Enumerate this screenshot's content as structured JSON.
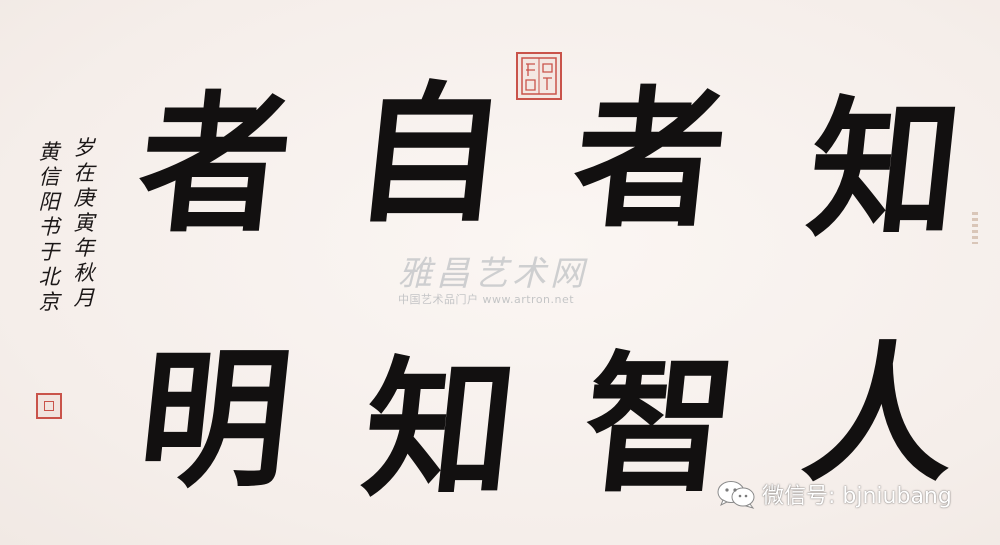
{
  "calligraphy": {
    "top_row": [
      "知",
      "者",
      "自",
      "者"
    ],
    "bottom_row": [
      "人",
      "智",
      "知",
      "明"
    ]
  },
  "inscription": {
    "col1": "岁在庚寅年秋月",
    "col2": "黄信阳书于北京"
  },
  "watermark": {
    "chinese": "雅昌艺术网",
    "sub": "中国艺术品门户 www.artron.net"
  },
  "wechat": {
    "label": "微信号: bjniubang"
  },
  "colors": {
    "paper": "#f7f1ee",
    "ink": "#121010",
    "seal": "#c9534a"
  },
  "icons": [
    "wechat-icon"
  ]
}
